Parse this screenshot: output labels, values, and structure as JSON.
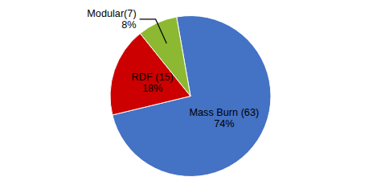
{
  "chart_data": {
    "type": "pie",
    "categories": [
      "Mass Burn (63)",
      "RDF (15)",
      "Modular(7)"
    ],
    "values": [
      74,
      18,
      8
    ],
    "value_labels": [
      "74%",
      "18%",
      "8%"
    ],
    "data_labels": true,
    "colors": [
      "#4472C4",
      "#CC0000",
      "#8DB832"
    ]
  }
}
